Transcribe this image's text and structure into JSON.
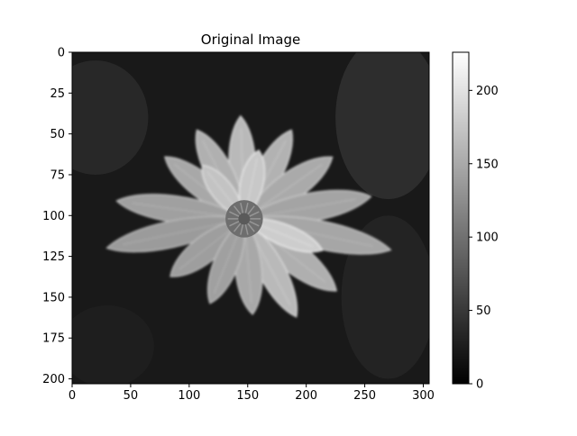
{
  "chart_data": {
    "type": "heatmap",
    "title": "Original Image",
    "xlabel": "",
    "ylabel": "",
    "colormap": "gray",
    "image_size": {
      "width": 305,
      "height": 203
    },
    "xlim": [
      0,
      305
    ],
    "ylim": [
      203,
      0
    ],
    "x_ticks": [
      0,
      50,
      100,
      150,
      200,
      250,
      300
    ],
    "y_ticks": [
      0,
      25,
      50,
      75,
      100,
      125,
      150,
      175,
      200
    ],
    "colorbar": {
      "range": [
        0,
        226
      ],
      "ticks": [
        0,
        50,
        100,
        150,
        200
      ]
    },
    "subject": "grayscale photograph of a dahlia flower on a dark background",
    "background_level": 25,
    "petal_level": 170,
    "center": {
      "x": 147,
      "y": 102
    },
    "petals": [
      {
        "angle": -92,
        "length": 88,
        "width": 30,
        "value": 185
      },
      {
        "angle": -62,
        "length": 86,
        "width": 30,
        "value": 178
      },
      {
        "angle": -118,
        "length": 86,
        "width": 30,
        "value": 176
      },
      {
        "angle": -35,
        "length": 92,
        "width": 32,
        "value": 170
      },
      {
        "angle": -142,
        "length": 86,
        "width": 28,
        "value": 168
      },
      {
        "angle": -10,
        "length": 110,
        "width": 32,
        "value": 164
      },
      {
        "angle": -172,
        "length": 110,
        "width": 30,
        "value": 160
      },
      {
        "angle": 12,
        "length": 128,
        "width": 32,
        "value": 166
      },
      {
        "angle": 168,
        "length": 120,
        "width": 30,
        "value": 155
      },
      {
        "angle": 38,
        "length": 100,
        "width": 34,
        "value": 175
      },
      {
        "angle": 142,
        "length": 80,
        "width": 30,
        "value": 158
      },
      {
        "angle": 62,
        "length": 95,
        "width": 30,
        "value": 185
      },
      {
        "angle": 85,
        "length": 82,
        "width": 30,
        "value": 168
      },
      {
        "angle": 112,
        "length": 78,
        "width": 28,
        "value": 160
      },
      {
        "angle": -78,
        "length": 60,
        "width": 26,
        "value": 200
      },
      {
        "angle": -128,
        "length": 58,
        "width": 24,
        "value": 195
      },
      {
        "angle": 22,
        "length": 72,
        "width": 24,
        "value": 205
      }
    ]
  }
}
